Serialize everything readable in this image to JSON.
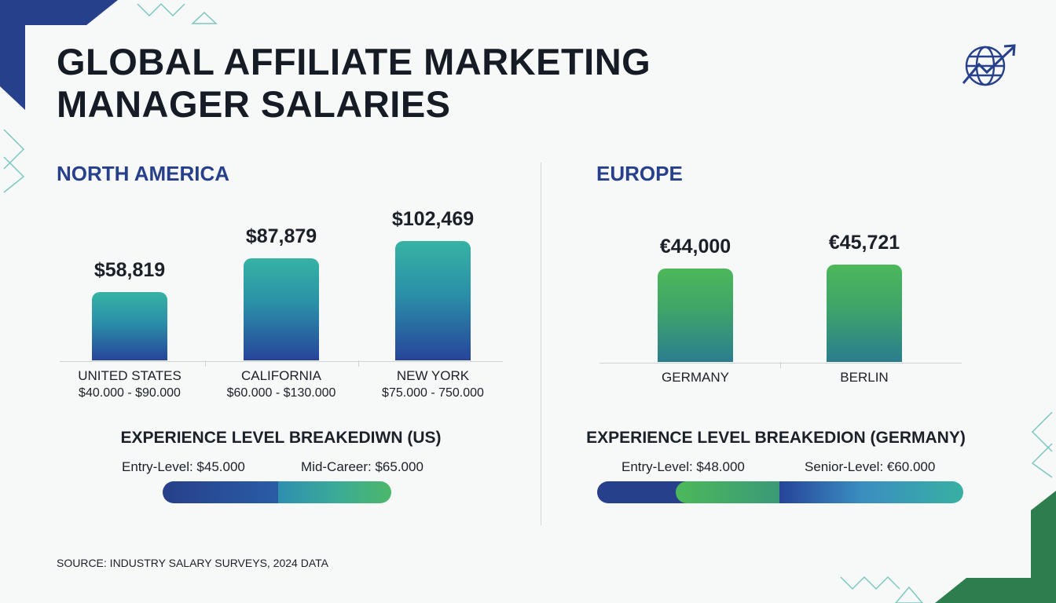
{
  "title_line1": "GLOBAL AFFILIATE MARKETING",
  "title_line2": "MANAGER SALARIES",
  "header_icon": "globe-growth-arrow-icon",
  "colors": {
    "accent_blue": "#27408b",
    "teal": "#36b3a3",
    "green": "#4cb85a"
  },
  "chart_data": [
    {
      "type": "bar",
      "title": "NORTH AMERICA",
      "categories": [
        "UNITED STATES",
        "CALIFORNIA",
        "NEW YORK"
      ],
      "values": [
        58819,
        87879,
        102469
      ],
      "data_labels": [
        "$58,819",
        "$87,879",
        "$102,469"
      ],
      "ranges": [
        "$40.000 - $90.000",
        "$60.000 - $130.000",
        "$75.000 - 750.000"
      ],
      "grid": false
    },
    {
      "type": "bar",
      "title": "EUROPE",
      "categories": [
        "GERMANY",
        "BERLIN"
      ],
      "values": [
        44000,
        45721
      ],
      "data_labels": [
        "€44,000",
        "€45,721"
      ],
      "grid": false
    }
  ],
  "us_experience": {
    "title": "EXPERIENCE LEVEL BREAKEDIWN (US)",
    "entry": "Entry-Level: $45.000",
    "mid": "Mid-Career: $65.000"
  },
  "germany_experience": {
    "title": "EXPERIENCE LEVEL BREAKEDION (GERMANY)",
    "entry": "Entry-Level: $48.000",
    "senior": "Senior-Level: €60.000"
  },
  "source": "SOURCE: INDUSTRY SALARY SURVEYS, 2024 DATA"
}
